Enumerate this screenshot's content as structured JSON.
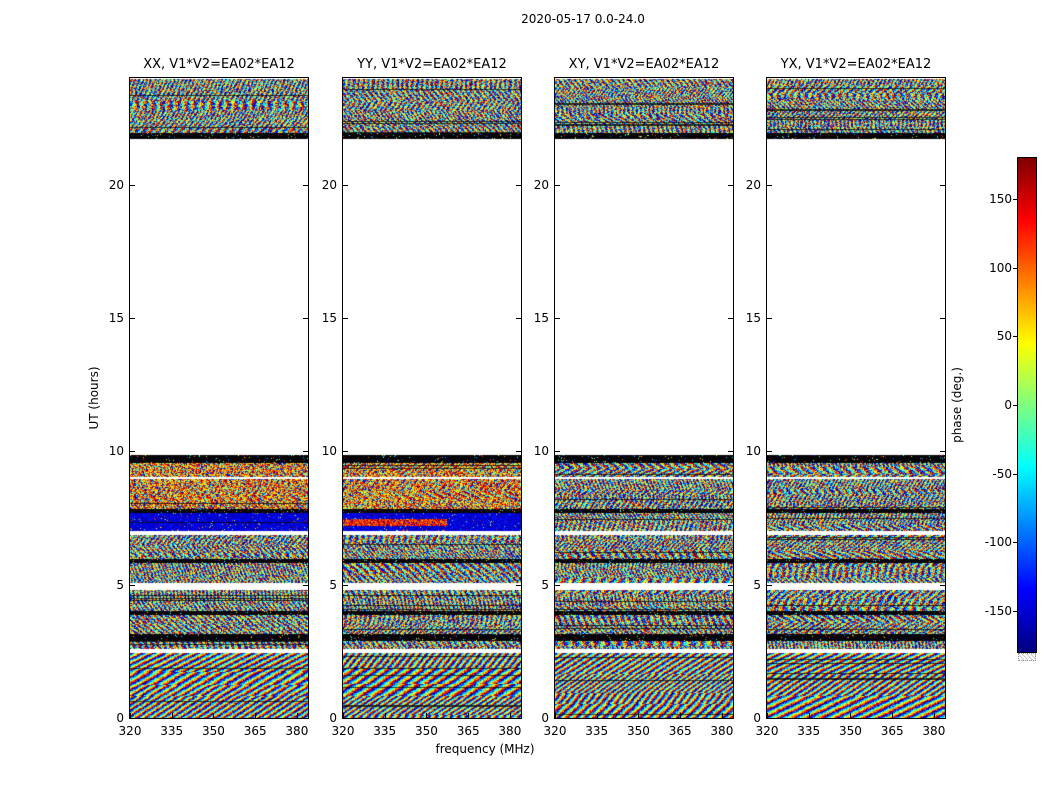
{
  "figure": {
    "title": "2020-05-17 0.0-24.0",
    "background": "#ffffff",
    "axis_color": "#000000"
  },
  "chart_data": {
    "type": "heatmap",
    "title": "2020-05-17 0.0-24.0",
    "description": "Four dynamic-spectrum panels of wrapped interferometric phase (deg) vs frequency and UT time for baseline EA02*EA12, one panel per polarization product, plus a jet colorbar.",
    "panels": [
      {
        "pol": "XX",
        "title": "XX, V1*V2=EA02*EA12"
      },
      {
        "pol": "YY",
        "title": "YY, V1*V2=EA02*EA12"
      },
      {
        "pol": "XY",
        "title": "XY, V1*V2=EA02*EA12"
      },
      {
        "pol": "YX",
        "title": "YX, V1*V2=EA02*EA12"
      }
    ],
    "xlabel": "frequency (MHz)",
    "ylabel": "UT (hours)",
    "x_ticks": [
      320,
      335,
      350,
      365,
      380
    ],
    "y_ticks": [
      0,
      5,
      10,
      15,
      20
    ],
    "xlim": [
      320,
      384
    ],
    "ylim": [
      0,
      24
    ],
    "grid": false,
    "colorbar": {
      "label": "phase (deg.)",
      "ticks": [
        150,
        100,
        50,
        0,
        -50,
        -100,
        -150
      ],
      "range": [
        -180,
        180
      ],
      "colormap": "jet"
    },
    "values_note": "Pixel values are wrapped phases (-180..180 deg) forming random-looking fringe/noise patterns; exact per-pixel values are stochastic.",
    "time_bands": [
      {
        "t0": 21.95,
        "t1": 23.95,
        "style": "noise"
      },
      {
        "t0": 21.7,
        "t1": 21.95,
        "style": "black"
      },
      {
        "t0": 9.85,
        "t1": 21.7,
        "style": "white",
        "note": "no data (blank gap)"
      },
      {
        "t0": 9.55,
        "t1": 9.85,
        "style": "black"
      },
      {
        "t0": 9.05,
        "t1": 9.55,
        "style": "noise",
        "hot": true
      },
      {
        "t0": 8.95,
        "t1": 9.05,
        "style": "white"
      },
      {
        "t0": 7.85,
        "t1": 8.95,
        "style": "noise",
        "hot": true
      },
      {
        "t0": 7.7,
        "t1": 7.85,
        "style": "black"
      },
      {
        "t0": 7.0,
        "t1": 7.7,
        "style": "special",
        "note": "dark navy saturated phase in XX/YY (red streak in YY); normal fringes in XY/YX"
      },
      {
        "t0": 6.85,
        "t1": 7.0,
        "style": "white"
      },
      {
        "t0": 5.95,
        "t1": 6.85,
        "style": "noise"
      },
      {
        "t0": 5.8,
        "t1": 5.95,
        "style": "black"
      },
      {
        "t0": 5.05,
        "t1": 5.8,
        "style": "noise"
      },
      {
        "t0": 4.8,
        "t1": 5.05,
        "style": "white"
      },
      {
        "t0": 4.0,
        "t1": 4.8,
        "style": "noise"
      },
      {
        "t0": 3.85,
        "t1": 4.0,
        "style": "black"
      },
      {
        "t0": 3.15,
        "t1": 3.85,
        "style": "noise"
      },
      {
        "t0": 2.9,
        "t1": 3.15,
        "style": "black"
      },
      {
        "t0": 2.6,
        "t1": 2.9,
        "style": "noise"
      },
      {
        "t0": 2.45,
        "t1": 2.6,
        "style": "white"
      },
      {
        "t0": 0.0,
        "t1": 2.45,
        "style": "noise",
        "slope": "diag"
      }
    ]
  }
}
